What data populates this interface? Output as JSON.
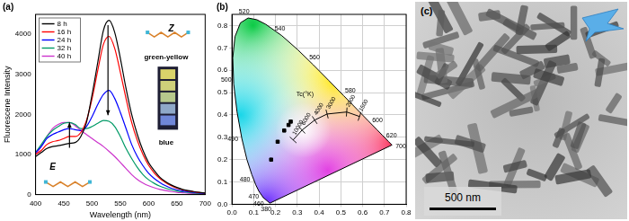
{
  "chart_data": [
    {
      "type": "line",
      "annotations": [
        "(a)",
        "Z",
        "green-yellow",
        "blue",
        "E"
      ],
      "x_label": "Wavelength (nm)",
      "y_label": "Fluorescene Intensity",
      "x": [
        400,
        410,
        420,
        430,
        440,
        450,
        460,
        470,
        480,
        490,
        500,
        510,
        520,
        530,
        540,
        550,
        560,
        570,
        580,
        590,
        600,
        610,
        620,
        630,
        640,
        650,
        660,
        670,
        680,
        690,
        700
      ],
      "xlim": [
        400,
        700
      ],
      "xticks": [
        400,
        450,
        500,
        550,
        600,
        650,
        700
      ],
      "ylim": [
        0,
        4500
      ],
      "yticks": [
        0,
        1000,
        2000,
        3000,
        4000
      ],
      "grid": false,
      "legend": "upper left",
      "series": [
        {
          "name": "8 h",
          "color": "#000000",
          "values": [
            950,
            1050,
            1150,
            1200,
            1220,
            1250,
            1280,
            1300,
            1450,
            1800,
            2500,
            3300,
            4100,
            4350,
            4050,
            3400,
            2650,
            2000,
            1500,
            1100,
            800,
            600,
            430,
            320,
            240,
            180,
            130,
            100,
            75,
            55,
            40
          ]
        },
        {
          "name": "16 h",
          "color": "#ff0000",
          "values": [
            1000,
            1100,
            1250,
            1320,
            1350,
            1400,
            1450,
            1450,
            1550,
            1850,
            2400,
            3100,
            3750,
            3950,
            3650,
            3050,
            2400,
            1800,
            1350,
            1000,
            730,
            540,
            400,
            300,
            220,
            160,
            120,
            90,
            70,
            50,
            40
          ]
        },
        {
          "name": "24 h",
          "color": "#0000ff",
          "values": [
            1050,
            1200,
            1400,
            1500,
            1560,
            1620,
            1650,
            1620,
            1600,
            1700,
            1950,
            2250,
            2500,
            2600,
            2400,
            2050,
            1650,
            1250,
            950,
            720,
            530,
            400,
            300,
            220,
            160,
            120,
            90,
            70,
            55,
            40,
            30
          ]
        },
        {
          "name": "32 h",
          "color": "#009a66",
          "values": [
            1050,
            1250,
            1450,
            1600,
            1700,
            1780,
            1800,
            1750,
            1650,
            1650,
            1700,
            1780,
            1850,
            1830,
            1700,
            1450,
            1150,
            900,
            680,
            500,
            370,
            280,
            210,
            160,
            120,
            90,
            70,
            55,
            40,
            30,
            25
          ]
        },
        {
          "name": "40 h",
          "color": "#cc33cc",
          "values": [
            1000,
            1200,
            1450,
            1650,
            1750,
            1800,
            1800,
            1720,
            1600,
            1500,
            1400,
            1300,
            1200,
            1080,
            950,
            800,
            650,
            500,
            380,
            290,
            220,
            170,
            130,
            100,
            75,
            55,
            45,
            35,
            28,
            22,
            18
          ]
        }
      ]
    },
    {
      "type": "scatter",
      "annotations": [
        "(b)",
        "Tc(°K)"
      ],
      "xlim": [
        0,
        0.8
      ],
      "xticks": [
        {
          "value": 0,
          "label": "0.0"
        },
        {
          "value": 0.1,
          "label": "0.1"
        },
        {
          "value": 0.2,
          "label": "0.2"
        },
        {
          "value": 0.3,
          "label": "0.3"
        },
        {
          "value": 0.4,
          "label": "0.4"
        },
        {
          "value": 0.5,
          "label": "0.5"
        },
        {
          "value": 0.6,
          "label": "0.6"
        },
        {
          "value": 0.7,
          "label": "0.7"
        },
        {
          "value": 0.8,
          "label": "0.8"
        }
      ],
      "ylim": [
        0,
        0.85
      ],
      "yticks": [
        {
          "value": 0,
          "label": "0.0"
        },
        {
          "value": 0.1,
          "label": "0.1"
        },
        {
          "value": 0.2,
          "label": "0.2"
        },
        {
          "value": 0.3,
          "label": "0.3"
        },
        {
          "value": 0.4,
          "label": "0.4"
        },
        {
          "value": 0.5,
          "label": "0.5"
        },
        {
          "value": 0.6,
          "label": "0.6"
        },
        {
          "value": 0.7,
          "label": "0.7"
        },
        {
          "value": 0.8,
          "label": "0.8"
        }
      ],
      "grid": true,
      "series": [
        {
          "type": "line",
          "color": "#000000",
          "x": [
            0.1741,
            0.144,
            0.1241,
            0.1096,
            0.0913,
            0.0687,
            0.0454,
            0.0235,
            0.0082,
            0.0039,
            0.0139,
            0.0389,
            0.0743,
            0.1142,
            0.1547,
            0.2296,
            0.3016,
            0.3731,
            0.4441,
            0.5125,
            0.5752,
            0.627,
            0.6658,
            0.6915,
            0.719,
            0.7347
          ],
          "values": [
            0.005,
            0.0297,
            0.0578,
            0.0868,
            0.1327,
            0.2007,
            0.295,
            0.4127,
            0.5384,
            0.6548,
            0.7502,
            0.812,
            0.8338,
            0.8262,
            0.8059,
            0.7543,
            0.6923,
            0.6245,
            0.5547,
            0.4866,
            0.4242,
            0.3725,
            0.334,
            0.3083,
            0.2809,
            0.2653
          ],
          "point_labels": [
            "380",
            "460",
            "470",
            null,
            "480",
            null,
            "490",
            null,
            "500",
            null,
            null,
            null,
            "520",
            null,
            null,
            "540",
            null,
            "560",
            null,
            "580",
            null,
            "600",
            null,
            "620",
            null,
            "700"
          ]
        },
        {
          "type": "line",
          "color": "#000000",
          "x": [
            0.281,
            0.322,
            0.38,
            0.437,
            0.527,
            0.586
          ],
          "values": [
            0.288,
            0.332,
            0.377,
            0.404,
            0.413,
            0.393
          ],
          "point_labels": [
            "10000",
            "6000",
            "4000",
            "3000",
            "2000",
            "1500"
          ]
        },
        {
          "type": "scatter",
          "color": "#000000",
          "marker": "square",
          "x": [
            0.27,
            0.26,
            0.24,
            0.21,
            0.18
          ],
          "values": [
            0.37,
            0.355,
            0.33,
            0.28,
            0.2
          ]
        }
      ]
    }
  ],
  "image_panel": {
    "annotations": [
      "(c)"
    ],
    "scale_bar": "500 nm"
  }
}
